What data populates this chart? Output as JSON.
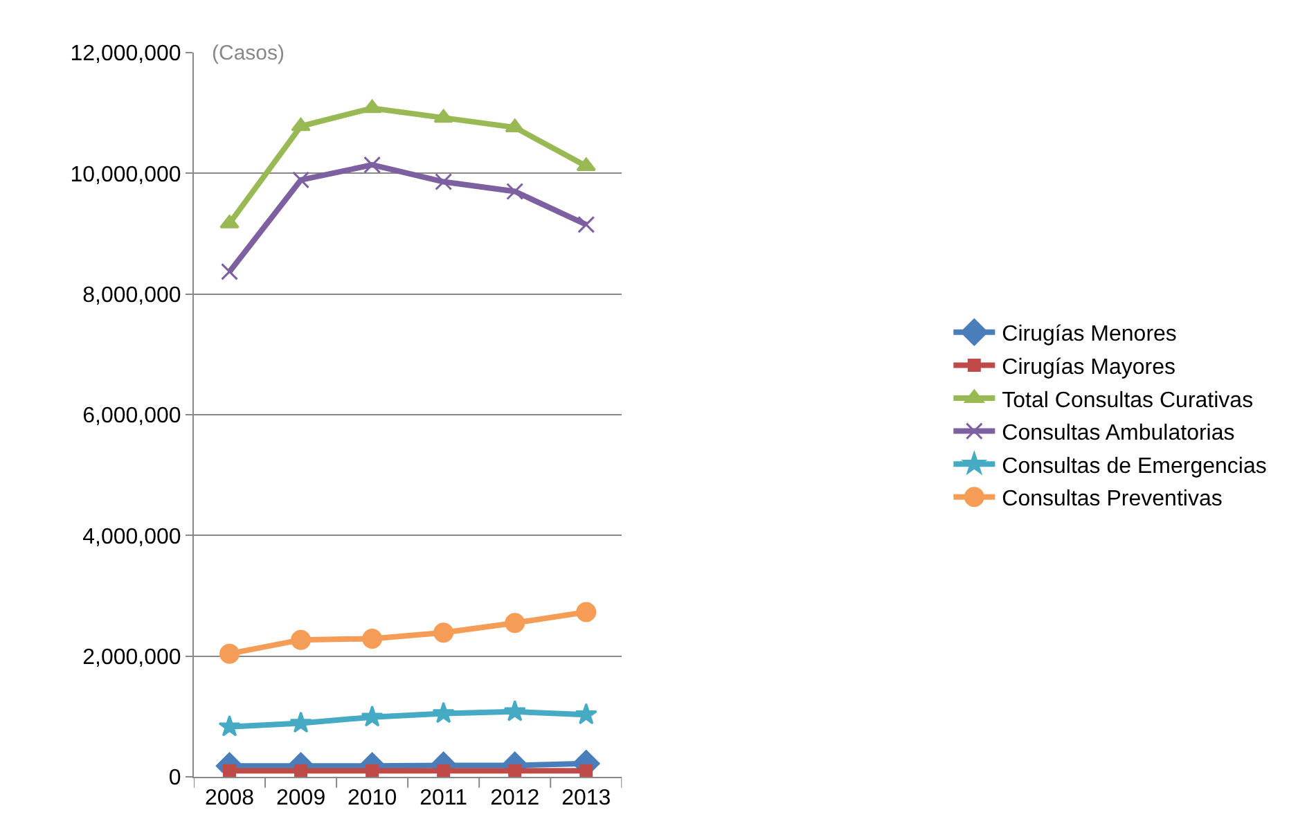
{
  "chart_data": {
    "type": "line",
    "categories": [
      "2008",
      "2009",
      "2010",
      "2011",
      "2012",
      "2013"
    ],
    "ylim": [
      0,
      12000000
    ],
    "yticks": [
      {
        "value": 0,
        "label": "0"
      },
      {
        "value": 2000000,
        "label": "2,000,000"
      },
      {
        "value": 4000000,
        "label": "4,000,000"
      },
      {
        "value": 6000000,
        "label": "6,000,000"
      },
      {
        "value": 8000000,
        "label": "8,000,000"
      },
      {
        "value": 10000000,
        "label": "10,000,000"
      },
      {
        "value": 12000000,
        "label": "12,000,000"
      }
    ],
    "grid": "y",
    "legend": "right",
    "annotations": [
      "(Casos)"
    ],
    "series": [
      {
        "name": "Cirugías Menores",
        "color": "#4a7ebb",
        "marker": "diamond",
        "values": [
          180000,
          180000,
          180000,
          190000,
          190000,
          220000
        ]
      },
      {
        "name": "Cirugías Mayores",
        "color": "#be4b48",
        "marker": "square",
        "values": [
          100000,
          100000,
          100000,
          100000,
          100000,
          100000
        ]
      },
      {
        "name": "Total Consultas Curativas",
        "color": "#98b954",
        "marker": "triangle",
        "values": [
          9170000,
          10780000,
          11080000,
          10920000,
          10760000,
          10120000
        ]
      },
      {
        "name": "Consultas Ambulatorias",
        "color": "#7d60a0",
        "marker": "cross",
        "values": [
          8370000,
          9890000,
          10140000,
          9860000,
          9700000,
          9150000
        ]
      },
      {
        "name": "Consultas de Emergencias",
        "color": "#46aac5",
        "marker": "star",
        "values": [
          830000,
          890000,
          990000,
          1050000,
          1080000,
          1030000
        ]
      },
      {
        "name": "Consultas Preventivas",
        "color": "#f59d56",
        "marker": "circle",
        "values": [
          2040000,
          2270000,
          2290000,
          2390000,
          2550000,
          2730000
        ]
      }
    ]
  }
}
